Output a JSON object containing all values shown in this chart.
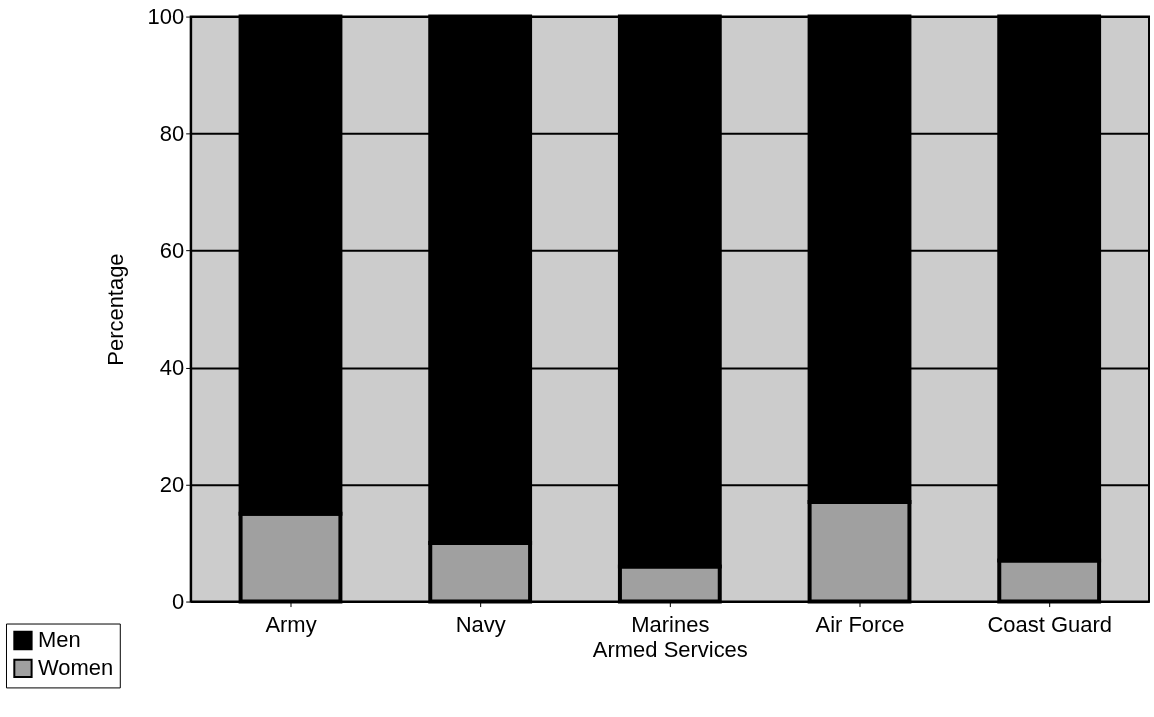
{
  "chart_data": {
    "type": "bar",
    "stacked": true,
    "xlabel": "Armed Services",
    "ylabel": "Percentage",
    "categories": [
      "Army",
      "Navy",
      "Marines",
      "Air Force",
      "Coast Guard"
    ],
    "series": [
      {
        "name": "Women",
        "color": "#a0a0a0",
        "values": [
          15,
          10,
          6,
          17,
          7
        ]
      },
      {
        "name": "Men",
        "color": "#000000",
        "values": [
          85,
          90,
          94,
          83,
          93
        ]
      }
    ],
    "ylim": [
      0,
      100
    ],
    "yticks": [
      0,
      20,
      40,
      60,
      80,
      100
    ],
    "grid": "y",
    "legend": "bottom left"
  }
}
